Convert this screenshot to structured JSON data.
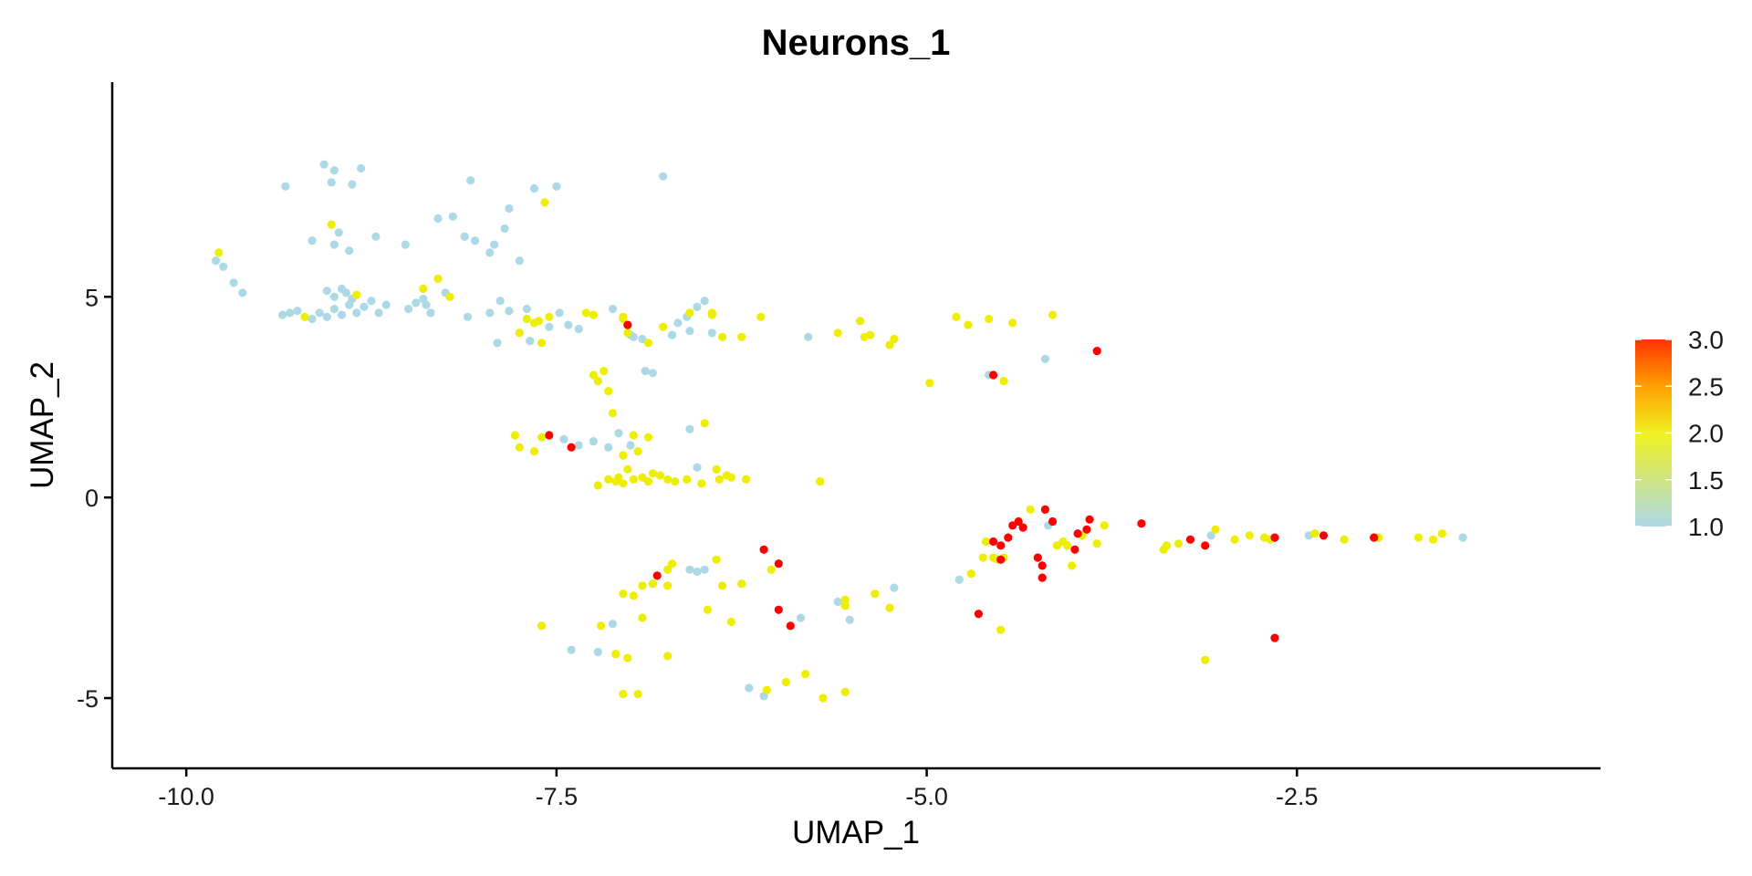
{
  "chart_data": {
    "type": "scatter",
    "title": "Neurons_1",
    "xlabel": "UMAP_1",
    "ylabel": "UMAP_2",
    "xlim": [
      -10.5,
      -0.45
    ],
    "ylim": [
      -6.75,
      10.35
    ],
    "xticks": [
      -10.0,
      -7.5,
      -5.0,
      -2.5
    ],
    "xtick_labels": [
      "-10.0",
      "-7.5",
      "-5.0",
      "-2.5"
    ],
    "yticks": [
      -5,
      0,
      5
    ],
    "ytick_labels": [
      "-5",
      "0",
      "5"
    ],
    "grid": false,
    "legend": {
      "type": "colorbar",
      "placement": "right",
      "range": [
        1.0,
        3.0
      ],
      "ticks": [
        1.0,
        1.5,
        2.0,
        2.5,
        3.0
      ],
      "tick_labels": [
        "1.0",
        "1.5",
        "2.0",
        "2.5",
        "3.0"
      ],
      "colors": [
        "#add8e6",
        "#f0f020",
        "#ff3300"
      ]
    },
    "color_scale": {
      "1": "#add8e6",
      "2": "#eeee00",
      "3": "#ff0000"
    },
    "points": [
      [
        -9.8,
        5.9,
        1
      ],
      [
        -9.75,
        5.75,
        1
      ],
      [
        -9.68,
        5.35,
        1
      ],
      [
        -9.62,
        5.1,
        1
      ],
      [
        -9.78,
        6.1,
        2
      ],
      [
        -9.35,
        4.55,
        1
      ],
      [
        -9.3,
        4.6,
        1
      ],
      [
        -9.25,
        4.65,
        1
      ],
      [
        -9.2,
        4.5,
        2
      ],
      [
        -9.15,
        4.45,
        1
      ],
      [
        -9.1,
        4.6,
        1
      ],
      [
        -9.05,
        4.5,
        1
      ],
      [
        -9.0,
        4.7,
        1
      ],
      [
        -8.95,
        4.55,
        1
      ],
      [
        -8.9,
        4.8,
        1
      ],
      [
        -8.85,
        4.6,
        1
      ],
      [
        -8.8,
        4.75,
        1
      ],
      [
        -8.75,
        4.9,
        1
      ],
      [
        -8.7,
        4.6,
        1
      ],
      [
        -8.65,
        4.8,
        1
      ],
      [
        -8.92,
        5.1,
        1
      ],
      [
        -8.88,
        4.95,
        1
      ],
      [
        -8.85,
        5.05,
        2
      ],
      [
        -9.05,
        5.15,
        1
      ],
      [
        -9.0,
        5.0,
        1
      ],
      [
        -8.95,
        5.2,
        1
      ],
      [
        -8.5,
        4.7,
        1
      ],
      [
        -8.45,
        4.85,
        1
      ],
      [
        -8.4,
        4.95,
        1
      ],
      [
        -8.4,
        5.2,
        2
      ],
      [
        -8.38,
        4.8,
        1
      ],
      [
        -8.35,
        4.6,
        1
      ],
      [
        -8.3,
        5.45,
        2
      ],
      [
        -8.25,
        5.1,
        1
      ],
      [
        -8.22,
        5.0,
        2
      ],
      [
        -9.33,
        7.75,
        1
      ],
      [
        -9.07,
        8.3,
        1
      ],
      [
        -9.0,
        8.15,
        1
      ],
      [
        -8.88,
        7.8,
        1
      ],
      [
        -8.82,
        8.2,
        1
      ],
      [
        -9.02,
        7.85,
        1
      ],
      [
        -9.15,
        6.4,
        1
      ],
      [
        -9.0,
        6.3,
        1
      ],
      [
        -8.97,
        6.6,
        1
      ],
      [
        -8.9,
        6.15,
        1
      ],
      [
        -8.72,
        6.5,
        1
      ],
      [
        -8.52,
        6.3,
        1
      ],
      [
        -8.3,
        6.95,
        1
      ],
      [
        -8.2,
        7.0,
        1
      ],
      [
        -8.12,
        6.5,
        1
      ],
      [
        -8.05,
        6.4,
        1
      ],
      [
        -7.95,
        6.1,
        1
      ],
      [
        -7.92,
        6.3,
        1
      ],
      [
        -7.85,
        6.7,
        1
      ],
      [
        -7.82,
        7.2,
        1
      ],
      [
        -8.08,
        7.9,
        1
      ],
      [
        -7.65,
        7.7,
        1
      ],
      [
        -7.5,
        7.75,
        1
      ],
      [
        -7.75,
        5.9,
        1
      ],
      [
        -9.02,
        6.8,
        2
      ],
      [
        -7.58,
        7.35,
        2
      ],
      [
        -8.1,
        4.5,
        1
      ],
      [
        -7.95,
        4.6,
        1
      ],
      [
        -7.88,
        4.9,
        1
      ],
      [
        -7.82,
        4.65,
        1
      ],
      [
        -7.7,
        4.7,
        1
      ],
      [
        -7.62,
        4.4,
        2
      ],
      [
        -7.55,
        4.5,
        2
      ],
      [
        -7.48,
        4.6,
        1
      ],
      [
        -7.42,
        4.3,
        1
      ],
      [
        -7.35,
        4.2,
        1
      ],
      [
        -7.3,
        4.6,
        2
      ],
      [
        -7.25,
        4.55,
        2
      ],
      [
        -7.7,
        4.45,
        2
      ],
      [
        -7.65,
        4.35,
        2
      ],
      [
        -7.75,
        4.1,
        2
      ],
      [
        -7.68,
        3.9,
        1
      ],
      [
        -7.6,
        3.85,
        2
      ],
      [
        -7.9,
        3.85,
        1
      ],
      [
        -7.55,
        4.25,
        1
      ],
      [
        -7.12,
        4.7,
        1
      ],
      [
        -7.05,
        4.5,
        2
      ],
      [
        -7.02,
        4.3,
        2
      ],
      [
        -7.0,
        4.05,
        1
      ],
      [
        -6.98,
        4.0,
        1
      ],
      [
        -6.92,
        3.95,
        1
      ],
      [
        -6.88,
        3.85,
        2
      ],
      [
        -6.78,
        4.25,
        2
      ],
      [
        -6.72,
        4.05,
        1
      ],
      [
        -6.68,
        4.35,
        1
      ],
      [
        -6.62,
        4.5,
        1
      ],
      [
        -6.6,
        4.6,
        2
      ],
      [
        -6.55,
        4.75,
        1
      ],
      [
        -6.5,
        4.9,
        1
      ],
      [
        -6.45,
        4.55,
        2
      ],
      [
        -6.45,
        4.1,
        1
      ],
      [
        -6.6,
        4.15,
        1
      ],
      [
        -7.05,
        4.45,
        2
      ],
      [
        -7.02,
        4.1,
        2
      ],
      [
        -6.9,
        3.15,
        1
      ],
      [
        -6.85,
        3.1,
        1
      ],
      [
        -6.78,
        8.0,
        1
      ],
      [
        -6.45,
        4.6,
        2
      ],
      [
        -7.02,
        4.3,
        3
      ],
      [
        -6.38,
        4.0,
        2
      ],
      [
        -6.25,
        4.0,
        2
      ],
      [
        -6.12,
        4.5,
        2
      ],
      [
        -5.8,
        4.0,
        1
      ],
      [
        -5.6,
        4.1,
        2
      ],
      [
        -5.45,
        4.4,
        2
      ],
      [
        -5.42,
        4.0,
        2
      ],
      [
        -5.38,
        4.05,
        2
      ],
      [
        -5.25,
        3.8,
        2
      ],
      [
        -5.22,
        3.95,
        2
      ],
      [
        -4.98,
        2.85,
        2
      ],
      [
        -4.8,
        4.5,
        2
      ],
      [
        -4.72,
        4.3,
        2
      ],
      [
        -4.58,
        4.45,
        2
      ],
      [
        -4.42,
        4.35,
        2
      ],
      [
        -4.15,
        4.55,
        2
      ],
      [
        -4.58,
        3.05,
        1
      ],
      [
        -4.55,
        3.05,
        3
      ],
      [
        -4.48,
        2.9,
        2
      ],
      [
        -4.2,
        3.45,
        1
      ],
      [
        -3.85,
        3.65,
        3
      ],
      [
        -7.25,
        3.05,
        2
      ],
      [
        -7.22,
        2.9,
        2
      ],
      [
        -7.18,
        3.15,
        2
      ],
      [
        -7.15,
        2.65,
        2
      ],
      [
        -7.12,
        2.1,
        2
      ],
      [
        -7.78,
        1.55,
        2
      ],
      [
        -7.75,
        1.25,
        2
      ],
      [
        -7.65,
        1.15,
        2
      ],
      [
        -7.6,
        1.5,
        2
      ],
      [
        -7.55,
        1.55,
        3
      ],
      [
        -7.45,
        1.45,
        1
      ],
      [
        -7.4,
        1.25,
        3
      ],
      [
        -7.35,
        1.3,
        1
      ],
      [
        -7.25,
        1.4,
        1
      ],
      [
        -7.15,
        1.25,
        1
      ],
      [
        -7.08,
        1.6,
        1
      ],
      [
        -7.0,
        1.3,
        1
      ],
      [
        -6.95,
        1.15,
        2
      ],
      [
        -6.88,
        1.5,
        2
      ],
      [
        -6.98,
        1.55,
        2
      ],
      [
        -7.05,
        1.05,
        2
      ],
      [
        -7.15,
        0.45,
        2
      ],
      [
        -7.1,
        0.4,
        2
      ],
      [
        -7.08,
        0.5,
        2
      ],
      [
        -7.02,
        0.7,
        2
      ],
      [
        -6.98,
        0.45,
        2
      ],
      [
        -6.92,
        0.5,
        2
      ],
      [
        -6.88,
        0.4,
        2
      ],
      [
        -6.85,
        0.6,
        2
      ],
      [
        -6.8,
        0.55,
        2
      ],
      [
        -6.75,
        0.45,
        2
      ],
      [
        -6.7,
        0.4,
        2
      ],
      [
        -6.62,
        0.45,
        2
      ],
      [
        -6.55,
        0.75,
        1
      ],
      [
        -6.52,
        0.35,
        2
      ],
      [
        -6.42,
        0.7,
        2
      ],
      [
        -6.4,
        0.45,
        2
      ],
      [
        -6.35,
        0.55,
        2
      ],
      [
        -6.32,
        0.5,
        2
      ],
      [
        -6.22,
        0.45,
        2
      ],
      [
        -6.6,
        1.7,
        1
      ],
      [
        -6.5,
        1.85,
        2
      ],
      [
        -5.72,
        0.4,
        2
      ],
      [
        -7.22,
        0.3,
        2
      ],
      [
        -7.05,
        0.35,
        2
      ],
      [
        -4.6,
        -1.1,
        2
      ],
      [
        -4.55,
        -1.1,
        3
      ],
      [
        -4.5,
        -1.2,
        3
      ],
      [
        -4.48,
        -1.5,
        2
      ],
      [
        -4.45,
        -1.0,
        3
      ],
      [
        -4.42,
        -0.7,
        3
      ],
      [
        -4.38,
        -0.6,
        3
      ],
      [
        -4.35,
        -0.75,
        3
      ],
      [
        -4.3,
        -0.3,
        2
      ],
      [
        -4.25,
        -1.5,
        3
      ],
      [
        -4.2,
        -0.3,
        3
      ],
      [
        -4.18,
        -0.7,
        1
      ],
      [
        -4.15,
        -0.6,
        3
      ],
      [
        -4.12,
        -1.2,
        2
      ],
      [
        -4.08,
        -1.1,
        2
      ],
      [
        -4.05,
        -1.2,
        2
      ],
      [
        -4.02,
        -1.7,
        2
      ],
      [
        -4.0,
        -1.3,
        3
      ],
      [
        -3.98,
        -0.9,
        3
      ],
      [
        -3.95,
        -0.95,
        2
      ],
      [
        -3.92,
        -0.8,
        3
      ],
      [
        -3.9,
        -0.55,
        3
      ],
      [
        -3.85,
        -1.15,
        2
      ],
      [
        -3.8,
        -0.7,
        2
      ],
      [
        -4.22,
        -1.7,
        3
      ],
      [
        -4.22,
        -2.0,
        3
      ],
      [
        -4.55,
        -1.5,
        2
      ],
      [
        -4.52,
        -1.55,
        2
      ],
      [
        -4.5,
        -1.55,
        3
      ],
      [
        -4.62,
        -1.5,
        2
      ],
      [
        -4.7,
        -1.9,
        2
      ],
      [
        -4.78,
        -2.05,
        1
      ],
      [
        -4.65,
        -2.9,
        3
      ],
      [
        -4.5,
        -3.3,
        2
      ],
      [
        -3.55,
        -0.65,
        3
      ],
      [
        -3.4,
        -1.3,
        2
      ],
      [
        -3.38,
        -1.2,
        2
      ],
      [
        -3.3,
        -1.15,
        2
      ],
      [
        -3.22,
        -1.05,
        3
      ],
      [
        -3.12,
        -1.2,
        3
      ],
      [
        -3.08,
        -0.95,
        1
      ],
      [
        -3.05,
        -0.8,
        2
      ],
      [
        -2.92,
        -1.05,
        2
      ],
      [
        -2.82,
        -0.95,
        2
      ],
      [
        -2.72,
        -1.0,
        2
      ],
      [
        -2.68,
        -1.05,
        2
      ],
      [
        -2.65,
        -1.0,
        3
      ],
      [
        -2.42,
        -0.95,
        1
      ],
      [
        -2.38,
        -0.9,
        2
      ],
      [
        -2.32,
        -0.95,
        3
      ],
      [
        -2.18,
        -1.05,
        2
      ],
      [
        -1.98,
        -1.0,
        3
      ],
      [
        -1.95,
        -1.0,
        2
      ],
      [
        -1.68,
        -1.0,
        2
      ],
      [
        -1.58,
        -1.05,
        2
      ],
      [
        -1.52,
        -0.9,
        2
      ],
      [
        -1.38,
        -1.0,
        1
      ],
      [
        -3.12,
        -4.05,
        2
      ],
      [
        -2.65,
        -3.5,
        3
      ],
      [
        -6.1,
        -1.3,
        3
      ],
      [
        -6.05,
        -1.8,
        2
      ],
      [
        -6.0,
        -1.65,
        3
      ],
      [
        -6.0,
        -2.8,
        3
      ],
      [
        -5.92,
        -3.2,
        3
      ],
      [
        -5.85,
        -3.0,
        1
      ],
      [
        -5.6,
        -2.6,
        1
      ],
      [
        -5.55,
        -2.55,
        2
      ],
      [
        -5.55,
        -2.7,
        2
      ],
      [
        -5.52,
        -3.05,
        1
      ],
      [
        -5.35,
        -2.4,
        2
      ],
      [
        -5.25,
        -2.75,
        2
      ],
      [
        -5.22,
        -2.25,
        1
      ],
      [
        -6.6,
        -1.8,
        1
      ],
      [
        -6.55,
        -1.85,
        1
      ],
      [
        -6.5,
        -1.8,
        1
      ],
      [
        -6.42,
        -1.55,
        2
      ],
      [
        -6.38,
        -2.2,
        2
      ],
      [
        -6.32,
        -3.1,
        2
      ],
      [
        -6.25,
        -2.15,
        2
      ],
      [
        -6.48,
        -2.8,
        2
      ],
      [
        -6.72,
        -1.65,
        2
      ],
      [
        -6.75,
        -1.8,
        2
      ],
      [
        -6.75,
        -2.2,
        2
      ],
      [
        -6.82,
        -1.95,
        3
      ],
      [
        -6.85,
        -2.15,
        2
      ],
      [
        -6.92,
        -2.2,
        2
      ],
      [
        -6.98,
        -2.45,
        2
      ],
      [
        -7.05,
        -2.4,
        2
      ],
      [
        -6.85,
        -2.15,
        1
      ],
      [
        -6.92,
        -3.0,
        2
      ],
      [
        -7.12,
        -3.15,
        1
      ],
      [
        -7.2,
        -3.2,
        2
      ],
      [
        -7.1,
        -3.9,
        2
      ],
      [
        -7.02,
        -4.0,
        2
      ],
      [
        -6.75,
        -3.95,
        2
      ],
      [
        -7.05,
        -4.9,
        2
      ],
      [
        -7.6,
        -3.2,
        2
      ],
      [
        -7.4,
        -3.8,
        1
      ],
      [
        -7.22,
        -3.85,
        1
      ],
      [
        -6.2,
        -4.75,
        1
      ],
      [
        -6.1,
        -4.95,
        1
      ],
      [
        -6.08,
        -4.8,
        2
      ],
      [
        -5.95,
        -4.6,
        2
      ],
      [
        -5.82,
        -4.4,
        2
      ],
      [
        -5.7,
        -5.0,
        2
      ],
      [
        -5.55,
        -4.85,
        2
      ],
      [
        -6.95,
        -4.9,
        2
      ]
    ]
  }
}
